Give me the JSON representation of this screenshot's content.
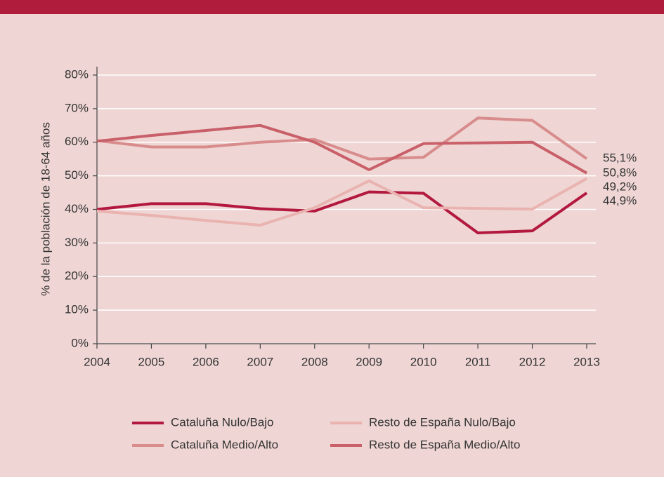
{
  "chart_data": {
    "type": "line",
    "y_label": "% de la población de 18-64 años",
    "x": [
      2004,
      2005,
      2006,
      2007,
      2008,
      2009,
      2010,
      2011,
      2012,
      2013
    ],
    "xlim": [
      2004,
      2013
    ],
    "xticks": [
      2004,
      2005,
      2006,
      2007,
      2008,
      2009,
      2010,
      2011,
      2012,
      2013
    ],
    "ylim": [
      0,
      80
    ],
    "yticks": [
      {
        "value": 0,
        "label": "0%"
      },
      {
        "value": 10,
        "label": "10%"
      },
      {
        "value": 20,
        "label": "20%"
      },
      {
        "value": 30,
        "label": "30%"
      },
      {
        "value": 40,
        "label": "40%"
      },
      {
        "value": 50,
        "label": "50%"
      },
      {
        "value": 60,
        "label": "60%"
      },
      {
        "value": 70,
        "label": "70%"
      },
      {
        "value": 80,
        "label": "80%"
      }
    ],
    "grid": true,
    "legend": "bottom",
    "series": [
      {
        "name": "Cataluña Nulo/Bajo",
        "color": "#b3193f",
        "values": [
          40,
          41.7,
          41.7,
          40.2,
          39.5,
          45.2,
          44.8,
          33,
          33.6,
          44.9
        ],
        "value_labels": [
          null,
          null,
          null,
          null,
          null,
          null,
          null,
          null,
          null,
          "44,9%"
        ]
      },
      {
        "name": "Resto de España Nulo/Bajo",
        "color": "#e9b3b0",
        "values": [
          39.5,
          38.2,
          36.7,
          35.3,
          40.5,
          48.5,
          40.5,
          40.3,
          40.1,
          49.2
        ],
        "value_labels": [
          null,
          null,
          null,
          null,
          null,
          null,
          null,
          null,
          null,
          "49,2%"
        ]
      },
      {
        "name": "Cataluña Medio/Alto",
        "color": "#d88c8c",
        "values": [
          60.5,
          58.6,
          58.6,
          60,
          60.8,
          55,
          55.5,
          67.2,
          66.5,
          55.1
        ],
        "value_labels": [
          null,
          null,
          null,
          null,
          null,
          null,
          null,
          null,
          null,
          "55,1%"
        ]
      },
      {
        "name": "Resto de España Medio/Alto",
        "color": "#c95f68",
        "values": [
          60.3,
          62,
          63.5,
          65,
          60,
          51.8,
          59.6,
          59.8,
          60,
          50.8
        ],
        "value_labels": [
          null,
          null,
          null,
          null,
          null,
          null,
          null,
          null,
          null,
          "50,8%"
        ]
      }
    ]
  }
}
